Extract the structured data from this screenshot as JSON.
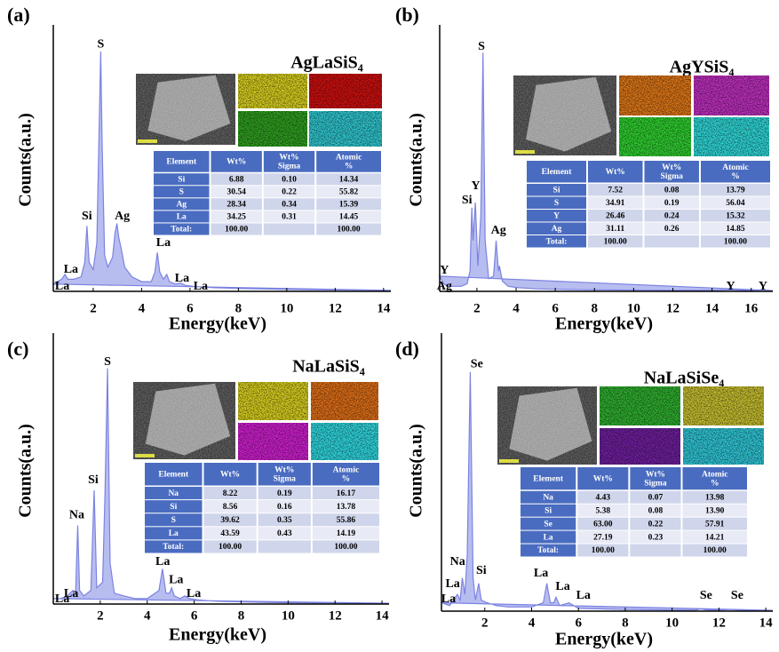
{
  "chart_data": [
    {
      "type": "area",
      "panel": "(a)",
      "compound": "AgLaSiS₄",
      "xlabel": "Energy(keV)",
      "ylabel": "Counts(a.u.)",
      "xlim": [
        0.35,
        14.3
      ],
      "ylim": [
        0,
        110
      ],
      "xticks": [
        2,
        4,
        6,
        8,
        10,
        12,
        14
      ],
      "x": [
        0.35,
        0.5,
        0.7,
        0.83,
        0.95,
        1.2,
        1.5,
        1.65,
        1.74,
        1.83,
        2.0,
        2.15,
        2.25,
        2.31,
        2.37,
        2.47,
        2.6,
        2.8,
        2.9,
        2.98,
        3.06,
        3.15,
        3.3,
        3.6,
        4.0,
        4.4,
        4.55,
        4.65,
        4.75,
        4.9,
        5.04,
        5.15,
        5.4,
        5.6,
        5.8,
        6.2,
        7,
        8,
        9,
        10,
        11,
        12,
        13,
        14,
        14.3
      ],
      "values": [
        3,
        4,
        5,
        7,
        5,
        5,
        6,
        12,
        27,
        12,
        9,
        20,
        70,
        99,
        60,
        15,
        10,
        14,
        24,
        28,
        22,
        18,
        10,
        6,
        4,
        4,
        8,
        16,
        8,
        5,
        7,
        4,
        3,
        3.5,
        2.5,
        2,
        1.5,
        1.2,
        1,
        0.8,
        0.7,
        0.6,
        0.5,
        0.4,
        0.4
      ],
      "color": "#7b83e0",
      "fill_color": "#b8bdf0",
      "peak_labels": [
        {
          "text": "S",
          "x": 2.31,
          "y": 100
        },
        {
          "text": "Si",
          "x": 1.74,
          "y": 29
        },
        {
          "text": "Ag",
          "x": 3.2,
          "y": 29
        },
        {
          "text": "La",
          "x": 4.9,
          "y": 18
        },
        {
          "text": "La",
          "x": 1.08,
          "y": 7
        },
        {
          "text": "La",
          "x": 5.67,
          "y": 3.3
        },
        {
          "text": "La",
          "x": 6.44,
          "y": 0
        },
        {
          "text": "La",
          "x": 0.72,
          "y": 0
        }
      ],
      "map_colors": [
        "#d8d020",
        "#d01010",
        "#30a020",
        "#30c8d0"
      ],
      "table": {
        "header": [
          [
            "Element"
          ],
          [
            "Wt%"
          ],
          [
            "Wt%",
            "Sigma"
          ],
          [
            "Atomic",
            "%"
          ]
        ],
        "rows": [
          [
            "Si",
            "6.88",
            "0.10",
            "14.34"
          ],
          [
            "S",
            "30.54",
            "0.22",
            "55.82"
          ],
          [
            "Ag",
            "28.34",
            "0.34",
            "15.39"
          ],
          [
            "La",
            "34.25",
            "0.31",
            "14.45"
          ],
          [
            "Total:",
            "100.00",
            null,
            "100.00"
          ]
        ]
      }
    },
    {
      "type": "area",
      "panel": "(b)",
      "compound": "AgYSiS₄",
      "xlabel": "Energy(keV)",
      "ylabel": "Counts(a.u.)",
      "xlim": [
        0.1,
        17.1
      ],
      "ylim": [
        0,
        105
      ],
      "xticks": [
        2,
        4,
        6,
        8,
        10,
        12,
        14,
        16
      ],
      "x": [
        0.1,
        0.3,
        0.5,
        0.8,
        1.2,
        1.5,
        1.65,
        1.74,
        1.8,
        1.92,
        2.05,
        2.2,
        2.31,
        2.42,
        2.6,
        2.85,
        2.98,
        3.1,
        3.15,
        3.3,
        3.6,
        4,
        5,
        6,
        8,
        10,
        12,
        14,
        14.95,
        15.5,
        16,
        16.7,
        17.1
      ],
      "values": [
        6,
        3,
        2,
        2,
        2,
        3,
        8,
        33,
        20,
        35,
        10,
        30,
        94,
        20,
        5,
        6,
        20,
        8,
        10,
        4,
        2,
        1.5,
        1,
        0.8,
        0.6,
        0.5,
        0.4,
        0.4,
        0.6,
        0.4,
        0.4,
        0.5,
        0.3
      ],
      "color": "#7b83e0",
      "fill_color": "#b8bdf0",
      "peak_labels": [
        {
          "text": "S",
          "x": 2.23,
          "y": 94.5
        },
        {
          "text": "Y",
          "x": 1.94,
          "y": 39.5
        },
        {
          "text": "Si",
          "x": 1.49,
          "y": 34
        },
        {
          "text": "Ag",
          "x": 3.1,
          "y": 22
        },
        {
          "text": "Y",
          "x": 0.34,
          "y": 6.3
        },
        {
          "text": "Ag",
          "x": 0.34,
          "y": 0
        },
        {
          "text": "Y",
          "x": 14.95,
          "y": 0
        },
        {
          "text": "Y",
          "x": 16.6,
          "y": 0
        }
      ],
      "map_colors": [
        "#e07818",
        "#c030c0",
        "#30d030",
        "#30d8d8"
      ],
      "table": {
        "header": [
          [
            "Element"
          ],
          [
            "Wt%"
          ],
          [
            "Wt%",
            "Sigma"
          ],
          [
            "Atomic",
            "%"
          ]
        ],
        "rows": [
          [
            "Si",
            "7.52",
            "0.08",
            "13.79"
          ],
          [
            "S",
            "34.91",
            "0.19",
            "56.04"
          ],
          [
            "Y",
            "26.46",
            "0.24",
            "15.32"
          ],
          [
            "Ag",
            "31.11",
            "0.26",
            "14.85"
          ],
          [
            "Total:",
            "100.00",
            null,
            "100.00"
          ]
        ]
      }
    },
    {
      "type": "area",
      "panel": "(c)",
      "compound": "NaLaSiS₄",
      "xlabel": "Energy(keV)",
      "ylabel": "Counts(a.u.)",
      "xlim": [
        0,
        14.3
      ],
      "ylim": [
        0,
        100
      ],
      "xticks": [
        2,
        4,
        6,
        8,
        10,
        12,
        14
      ],
      "x": [
        0,
        0.3,
        0.6,
        0.83,
        0.95,
        1.04,
        1.12,
        1.3,
        1.6,
        1.74,
        1.85,
        2.1,
        2.2,
        2.31,
        2.42,
        2.6,
        3,
        3.5,
        4,
        4.5,
        4.65,
        4.8,
        4.95,
        5.04,
        5.15,
        5.4,
        5.6,
        5.8,
        6.2,
        7,
        8,
        9,
        10,
        11,
        12,
        13,
        14,
        14.3
      ],
      "values": [
        2,
        2,
        3,
        5,
        4,
        29,
        5,
        3,
        5,
        42,
        6,
        8,
        40,
        87,
        15,
        4,
        3,
        2,
        2,
        5,
        13,
        4,
        4,
        6,
        3,
        2,
        3,
        2,
        1.5,
        1,
        0.8,
        0.6,
        0.5,
        0.4,
        0.4,
        0.3,
        0.3,
        0.3
      ],
      "color": "#7b83e0",
      "fill_color": "#b8bdf0",
      "peak_labels": [
        {
          "text": "S",
          "x": 2.31,
          "y": 87.5
        },
        {
          "text": "Si",
          "x": 1.7,
          "y": 44
        },
        {
          "text": "Na",
          "x": 1.0,
          "y": 31
        },
        {
          "text": "La",
          "x": 4.66,
          "y": 13.8
        },
        {
          "text": "La",
          "x": 5.23,
          "y": 7
        },
        {
          "text": "La",
          "x": 5.98,
          "y": 2
        },
        {
          "text": "La",
          "x": 0.76,
          "y": 2
        },
        {
          "text": "La",
          "x": 0.38,
          "y": 0
        }
      ],
      "map_colors": [
        "#d8d020",
        "#e07018",
        "#d020d0",
        "#30d8e0"
      ],
      "table": {
        "header": [
          [
            "Element"
          ],
          [
            "Wt%"
          ],
          [
            "Wt%",
            "Sigma"
          ],
          [
            "Atomic",
            "%"
          ]
        ],
        "rows": [
          [
            "Na",
            "8.22",
            "0.19",
            "16.17"
          ],
          [
            "Si",
            "8.56",
            "0.16",
            "13.78"
          ],
          [
            "S",
            "39.62",
            "0.35",
            "55.86"
          ],
          [
            "La",
            "43.59",
            "0.43",
            "14.19"
          ],
          [
            "Total:",
            "100.00",
            null,
            "100.00"
          ]
        ]
      }
    },
    {
      "type": "area",
      "panel": "(d)",
      "compound": "NaLaSiSe₄",
      "xlabel": "Energy(keV)",
      "ylabel": "Counts(a.u.)",
      "xlim": [
        0.15,
        14.3
      ],
      "ylim": [
        0,
        100
      ],
      "xticks": [
        2,
        4,
        6,
        8,
        10,
        12,
        14
      ],
      "x": [
        0.15,
        0.5,
        0.83,
        0.95,
        1.04,
        1.15,
        1.25,
        1.38,
        1.5,
        1.6,
        1.74,
        1.85,
        2.1,
        2.5,
        3,
        4,
        4.5,
        4.65,
        4.8,
        4.95,
        5.04,
        5.2,
        5.6,
        6,
        7,
        8,
        9,
        10,
        11,
        11.22,
        11.5,
        12,
        12.5,
        13,
        14,
        14.3
      ],
      "values": [
        3,
        2,
        6,
        4,
        12,
        6,
        20,
        86,
        12,
        4,
        10,
        4,
        3,
        2,
        1.5,
        1.5,
        3,
        10,
        3,
        3,
        5,
        2,
        3,
        1,
        0.8,
        0.6,
        0.5,
        0.4,
        0.4,
        0.8,
        0.4,
        0.4,
        0.6,
        0.3,
        0.3,
        0.3
      ],
      "color": "#7b83e0",
      "fill_color": "#b8bdf0",
      "peak_labels": [
        {
          "text": "Se",
          "x": 1.66,
          "y": 87
        },
        {
          "text": "Na",
          "x": 0.84,
          "y": 16
        },
        {
          "text": "Si",
          "x": 1.85,
          "y": 12.8
        },
        {
          "text": "La",
          "x": 0.63,
          "y": 8
        },
        {
          "text": "La",
          "x": 0.45,
          "y": 2.6
        },
        {
          "text": "La",
          "x": 4.4,
          "y": 11.8
        },
        {
          "text": "La",
          "x": 5.33,
          "y": 7
        },
        {
          "text": "La",
          "x": 6.21,
          "y": 3.8
        },
        {
          "text": "Se",
          "x": 11.45,
          "y": 3.8
        },
        {
          "text": "Se",
          "x": 12.78,
          "y": 3.8
        }
      ],
      "map_colors": [
        "#30b030",
        "#c8c030",
        "#7020a0",
        "#30c8d8"
      ],
      "table": {
        "header": [
          [
            "Element"
          ],
          [
            "Wt%"
          ],
          [
            "Wt%",
            "Sigma"
          ],
          [
            "Atomic",
            "%"
          ]
        ],
        "rows": [
          [
            "Na",
            "4.43",
            "0.07",
            "13.98"
          ],
          [
            "Si",
            "5.38",
            "0.08",
            "13.90"
          ],
          [
            "Se",
            "63.00",
            "0.22",
            "57.91"
          ],
          [
            "La",
            "27.19",
            "0.23",
            "14.21"
          ],
          [
            "Total:",
            "100.00",
            null,
            "100.00"
          ]
        ]
      }
    }
  ]
}
